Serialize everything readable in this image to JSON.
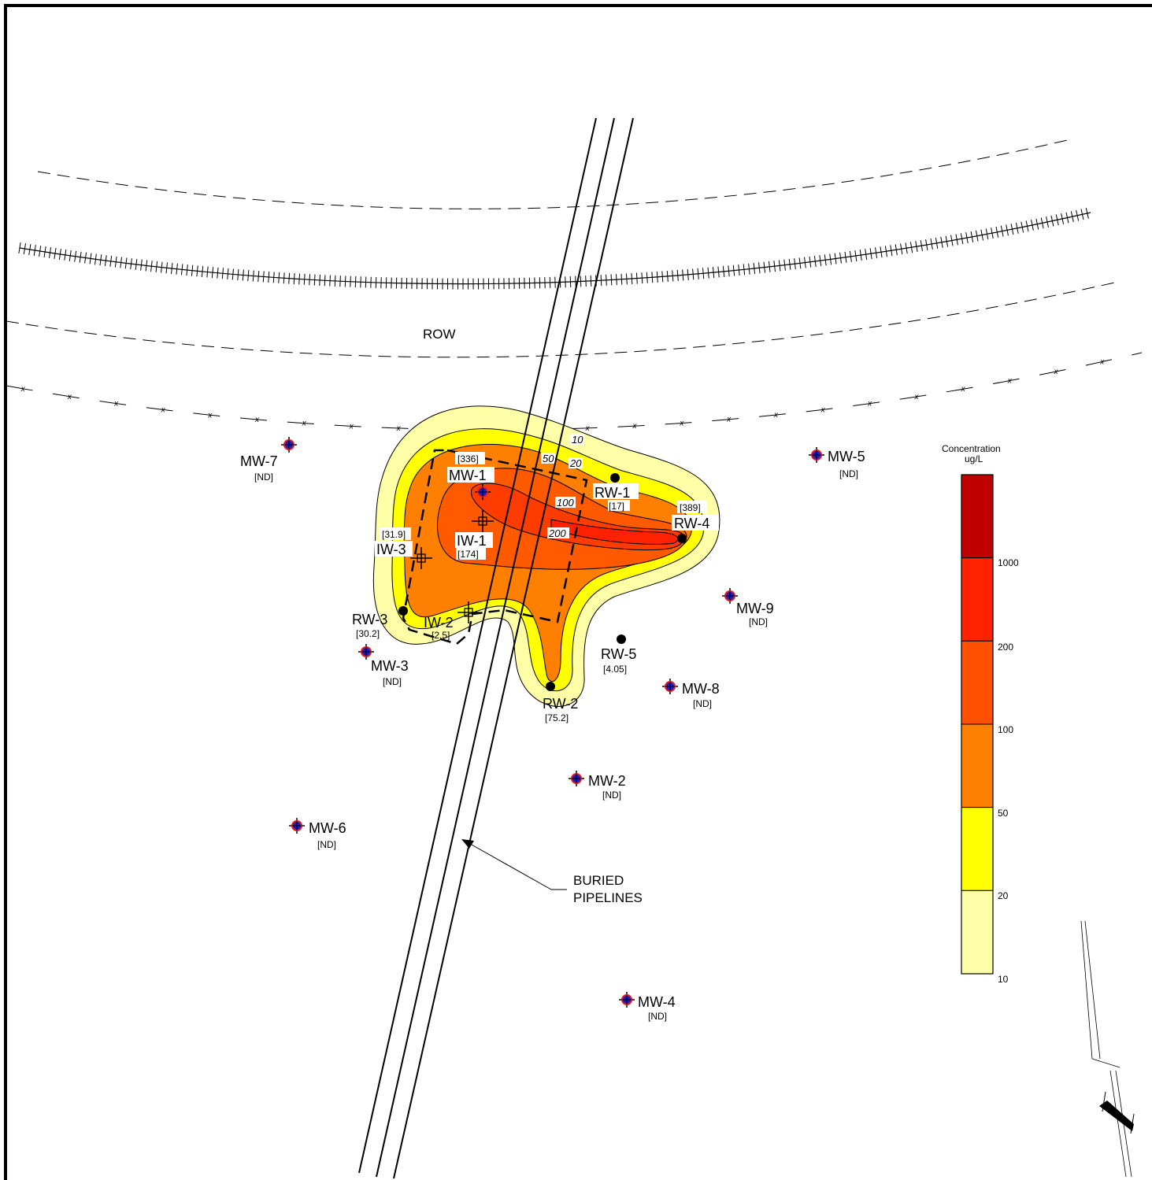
{
  "map": {
    "row_label": "ROW",
    "pipelines_label_line1": "BURIED",
    "pipelines_label_line2": "PIPELINES"
  },
  "contour_labels": [
    "10",
    "20",
    "50",
    "100",
    "200"
  ],
  "fill_colors": {
    "c10": "#FFFFA8",
    "c20": "#FFFF00",
    "c50": "#FF8000",
    "c100": "#FF5A00",
    "c200": "#FF3C00",
    "c1000": "#C00000"
  },
  "wells": {
    "monitoring": [
      {
        "id": "MW-1",
        "value": ""
      },
      {
        "id": "MW-2",
        "value": "[ND]"
      },
      {
        "id": "MW-3",
        "value": "[ND]"
      },
      {
        "id": "MW-4",
        "value": "[ND]"
      },
      {
        "id": "MW-5",
        "value": "[ND]"
      },
      {
        "id": "MW-6",
        "value": "[ND]"
      },
      {
        "id": "MW-7",
        "value": "[ND]"
      },
      {
        "id": "MW-8",
        "value": "[ND]"
      },
      {
        "id": "MW-9",
        "value": "[ND]"
      }
    ],
    "recovery": [
      {
        "id": "RW-1",
        "value": "[17]"
      },
      {
        "id": "RW-2",
        "value": "[75.2]"
      },
      {
        "id": "RW-3",
        "value": "[30.2]"
      },
      {
        "id": "RW-4",
        "value": "[389]"
      },
      {
        "id": "RW-5",
        "value": "[4.05]"
      }
    ],
    "injection": [
      {
        "id": "IW-1",
        "value": "[174]"
      },
      {
        "id": "IW-2",
        "value": "[2.5]"
      },
      {
        "id": "IW-3",
        "value": "[31.9]"
      }
    ],
    "extra_value": "[336]"
  },
  "legend": {
    "title_line1": "Concentration",
    "title_line2": "ug/L",
    "ticks": [
      "1000",
      "200",
      "100",
      "50",
      "20",
      "10"
    ],
    "bands": [
      {
        "color": "#C00000"
      },
      {
        "color": "#FF2200"
      },
      {
        "color": "#FF5000"
      },
      {
        "color": "#FF8000"
      },
      {
        "color": "#FFFF00"
      },
      {
        "color": "#FFFFA8"
      }
    ]
  },
  "north_arrow": {
    "icon": "north-arrow-icon"
  }
}
